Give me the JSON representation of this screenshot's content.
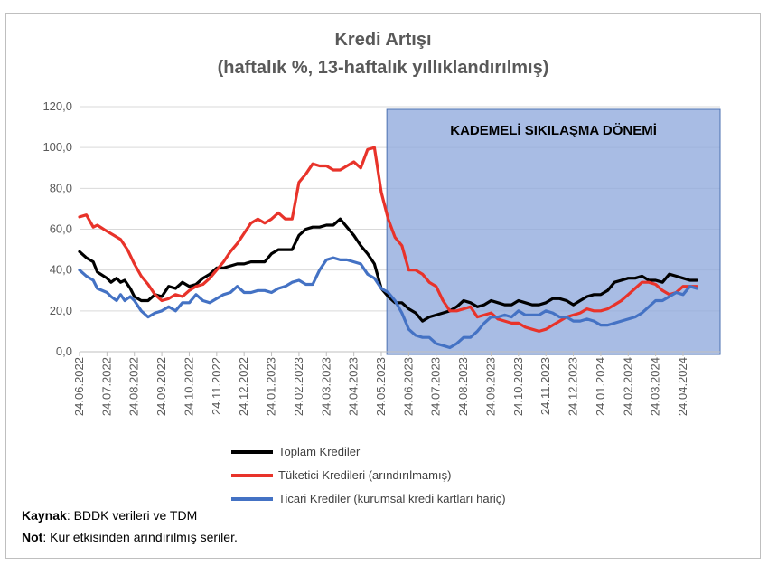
{
  "chart_data": {
    "type": "line",
    "title": "Kredi Artışı",
    "subtitle": "(haftalık %, 13-haftalık yıllıklandırılmış)",
    "ylim": [
      0,
      120
    ],
    "yticks": [
      "0,0",
      "20,0",
      "40,0",
      "60,0",
      "80,0",
      "100,0",
      "120,0"
    ],
    "ytick_values": [
      0,
      20,
      40,
      60,
      80,
      100,
      120
    ],
    "grid": true,
    "legend_position": "bottom",
    "x_dates": [
      "24.06.2022",
      "24.07.2022",
      "24.08.2022",
      "24.09.2022",
      "24.10.2022",
      "24.11.2022",
      "24.12.2022",
      "24.01.2023",
      "24.02.2023",
      "24.03.2023",
      "24.04.2023",
      "24.05.2023",
      "24.06.2023",
      "24.07.2023",
      "24.08.2023",
      "24.09.2023",
      "24.10.2023",
      "24.11.2023",
      "24.12.2023",
      "24.01.2024",
      "24.02.2024",
      "24.03.2024",
      "24.04.2024"
    ],
    "shaded_region": {
      "label": "KADEMELİ SIKILAŞMA DÖNEMİ",
      "x_start_month": 11.4,
      "x_end_month": 23.6,
      "color": "#8FA9DC"
    },
    "series": [
      {
        "name": "Toplam Krediler",
        "color": "#000000",
        "points": [
          [
            0,
            49
          ],
          [
            0.5,
            46
          ],
          [
            1,
            44
          ],
          [
            1.3,
            39
          ],
          [
            2,
            36
          ],
          [
            2.3,
            34
          ],
          [
            2.7,
            36
          ],
          [
            3,
            34
          ],
          [
            3.3,
            35
          ],
          [
            3.7,
            31
          ],
          [
            4,
            27
          ],
          [
            4.5,
            25
          ],
          [
            5,
            25
          ],
          [
            5.5,
            28
          ],
          [
            6,
            27
          ],
          [
            6.5,
            32
          ],
          [
            7,
            31
          ],
          [
            7.5,
            34
          ],
          [
            8,
            32
          ],
          [
            8.5,
            33
          ],
          [
            9,
            36
          ],
          [
            9.5,
            38
          ],
          [
            10,
            41
          ],
          [
            10.5,
            41
          ],
          [
            11,
            42
          ],
          [
            11.5,
            43
          ],
          [
            12,
            43
          ],
          [
            12.5,
            44
          ],
          [
            13,
            44
          ],
          [
            13.5,
            44
          ],
          [
            14,
            48
          ],
          [
            14.5,
            50
          ],
          [
            15,
            50
          ],
          [
            15.5,
            50
          ],
          [
            16,
            57
          ],
          [
            16.5,
            60
          ],
          [
            17,
            61
          ],
          [
            17.5,
            61
          ],
          [
            18,
            62
          ],
          [
            18.5,
            62
          ],
          [
            19,
            65
          ],
          [
            19.5,
            61
          ],
          [
            20,
            57
          ],
          [
            20.5,
            52
          ],
          [
            21,
            48
          ],
          [
            21.5,
            43
          ],
          [
            22,
            31
          ],
          [
            22.5,
            27
          ],
          [
            23,
            24
          ],
          [
            23.5,
            24
          ],
          [
            24,
            21
          ],
          [
            24.5,
            19
          ],
          [
            25,
            15
          ],
          [
            25.5,
            17
          ],
          [
            26,
            18
          ],
          [
            26.5,
            19
          ],
          [
            27,
            20
          ],
          [
            27.5,
            22
          ],
          [
            28,
            25
          ],
          [
            28.5,
            24
          ],
          [
            29,
            22
          ],
          [
            29.5,
            23
          ],
          [
            30,
            25
          ],
          [
            30.5,
            24
          ],
          [
            31,
            23
          ],
          [
            31.5,
            23
          ],
          [
            32,
            25
          ],
          [
            32.5,
            24
          ],
          [
            33,
            23
          ],
          [
            33.5,
            23
          ],
          [
            34,
            24
          ],
          [
            34.5,
            26
          ],
          [
            35,
            26
          ],
          [
            35.5,
            25
          ],
          [
            36,
            23
          ],
          [
            36.5,
            25
          ],
          [
            37,
            27
          ],
          [
            37.5,
            28
          ],
          [
            38,
            28
          ],
          [
            38.5,
            30
          ],
          [
            39,
            34
          ],
          [
            39.5,
            35
          ],
          [
            40,
            36
          ],
          [
            40.5,
            36
          ],
          [
            41,
            37
          ],
          [
            41.5,
            35
          ],
          [
            42,
            35
          ],
          [
            42.5,
            34
          ],
          [
            43,
            38
          ],
          [
            43.5,
            37
          ],
          [
            44,
            36
          ],
          [
            44.5,
            35
          ],
          [
            45,
            35
          ]
        ]
      },
      {
        "name": "Tüketici Kredileri (arındırılmamış)",
        "color": "#E8332A",
        "points": [
          [
            0,
            66
          ],
          [
            0.5,
            67
          ],
          [
            1,
            61
          ],
          [
            1.3,
            62
          ],
          [
            2,
            59
          ],
          [
            2.5,
            57
          ],
          [
            3,
            55
          ],
          [
            3.5,
            50
          ],
          [
            4,
            43
          ],
          [
            4.5,
            37
          ],
          [
            5,
            33
          ],
          [
            5.5,
            28
          ],
          [
            6,
            25
          ],
          [
            6.5,
            26
          ],
          [
            7,
            28
          ],
          [
            7.5,
            27
          ],
          [
            8,
            30
          ],
          [
            8.5,
            32
          ],
          [
            9,
            33
          ],
          [
            9.5,
            36
          ],
          [
            10,
            40
          ],
          [
            10.5,
            44
          ],
          [
            11,
            49
          ],
          [
            11.5,
            53
          ],
          [
            12,
            58
          ],
          [
            12.5,
            63
          ],
          [
            13,
            65
          ],
          [
            13.5,
            63
          ],
          [
            14,
            65
          ],
          [
            14.5,
            68
          ],
          [
            15,
            65
          ],
          [
            15.5,
            65
          ],
          [
            16,
            83
          ],
          [
            16.5,
            87
          ],
          [
            17,
            92
          ],
          [
            17.5,
            91
          ],
          [
            18,
            91
          ],
          [
            18.5,
            89
          ],
          [
            19,
            89
          ],
          [
            19.5,
            91
          ],
          [
            20,
            93
          ],
          [
            20.5,
            90
          ],
          [
            21,
            99
          ],
          [
            21.5,
            100
          ],
          [
            22,
            78
          ],
          [
            22.5,
            65
          ],
          [
            23,
            56
          ],
          [
            23.5,
            52
          ],
          [
            24,
            40
          ],
          [
            24.5,
            40
          ],
          [
            25,
            38
          ],
          [
            25.5,
            34
          ],
          [
            26,
            32
          ],
          [
            26.5,
            25
          ],
          [
            27,
            20
          ],
          [
            27.5,
            20
          ],
          [
            28,
            21
          ],
          [
            28.5,
            22
          ],
          [
            29,
            17
          ],
          [
            29.5,
            18
          ],
          [
            30,
            19
          ],
          [
            30.5,
            16
          ],
          [
            31,
            15
          ],
          [
            31.5,
            14
          ],
          [
            32,
            14
          ],
          [
            32.5,
            12
          ],
          [
            33,
            11
          ],
          [
            33.5,
            10
          ],
          [
            34,
            11
          ],
          [
            34.5,
            13
          ],
          [
            35,
            15
          ],
          [
            35.5,
            17
          ],
          [
            36,
            18
          ],
          [
            36.5,
            19
          ],
          [
            37,
            21
          ],
          [
            37.5,
            20
          ],
          [
            38,
            20
          ],
          [
            38.5,
            21
          ],
          [
            39,
            23
          ],
          [
            39.5,
            25
          ],
          [
            40,
            28
          ],
          [
            40.5,
            31
          ],
          [
            41,
            34
          ],
          [
            41.5,
            34
          ],
          [
            42,
            33
          ],
          [
            42.5,
            30
          ],
          [
            43,
            28
          ],
          [
            43.5,
            29
          ],
          [
            44,
            32
          ],
          [
            44.5,
            32
          ],
          [
            45,
            32
          ]
        ]
      },
      {
        "name": "Ticari Krediler (kurumsal kredi kartları hariç)",
        "color": "#4472C4",
        "points": [
          [
            0,
            40
          ],
          [
            0.5,
            37
          ],
          [
            1,
            35
          ],
          [
            1.3,
            31
          ],
          [
            2,
            29
          ],
          [
            2.3,
            27
          ],
          [
            2.7,
            25
          ],
          [
            3,
            28
          ],
          [
            3.3,
            25
          ],
          [
            3.7,
            27
          ],
          [
            4,
            25
          ],
          [
            4.5,
            20
          ],
          [
            5,
            17
          ],
          [
            5.5,
            19
          ],
          [
            6,
            20
          ],
          [
            6.5,
            22
          ],
          [
            7,
            20
          ],
          [
            7.5,
            24
          ],
          [
            8,
            24
          ],
          [
            8.5,
            28
          ],
          [
            9,
            25
          ],
          [
            9.5,
            24
          ],
          [
            10,
            26
          ],
          [
            10.5,
            28
          ],
          [
            11,
            29
          ],
          [
            11.5,
            32
          ],
          [
            12,
            29
          ],
          [
            12.5,
            29
          ],
          [
            13,
            30
          ],
          [
            13.5,
            30
          ],
          [
            14,
            29
          ],
          [
            14.5,
            31
          ],
          [
            15,
            32
          ],
          [
            15.5,
            34
          ],
          [
            16,
            35
          ],
          [
            16.5,
            33
          ],
          [
            17,
            33
          ],
          [
            17.5,
            40
          ],
          [
            18,
            45
          ],
          [
            18.5,
            46
          ],
          [
            19,
            45
          ],
          [
            19.5,
            45
          ],
          [
            20,
            44
          ],
          [
            20.5,
            43
          ],
          [
            21,
            38
          ],
          [
            21.5,
            36
          ],
          [
            22,
            31
          ],
          [
            22.5,
            29
          ],
          [
            23,
            25
          ],
          [
            23.5,
            19
          ],
          [
            24,
            11
          ],
          [
            24.5,
            8
          ],
          [
            25,
            7
          ],
          [
            25.5,
            7
          ],
          [
            26,
            4
          ],
          [
            26.5,
            3
          ],
          [
            27,
            2
          ],
          [
            27.5,
            4
          ],
          [
            28,
            7
          ],
          [
            28.5,
            7
          ],
          [
            29,
            10
          ],
          [
            29.5,
            14
          ],
          [
            30,
            17
          ],
          [
            30.5,
            17
          ],
          [
            31,
            18
          ],
          [
            31.5,
            17
          ],
          [
            32,
            20
          ],
          [
            32.5,
            18
          ],
          [
            33,
            18
          ],
          [
            33.5,
            18
          ],
          [
            34,
            20
          ],
          [
            34.5,
            19
          ],
          [
            35,
            17
          ],
          [
            35.5,
            17
          ],
          [
            36,
            15
          ],
          [
            36.5,
            15
          ],
          [
            37,
            16
          ],
          [
            37.5,
            15
          ],
          [
            38,
            13
          ],
          [
            38.5,
            13
          ],
          [
            39,
            14
          ],
          [
            39.5,
            15
          ],
          [
            40,
            16
          ],
          [
            40.5,
            17
          ],
          [
            41,
            19
          ],
          [
            41.5,
            22
          ],
          [
            42,
            25
          ],
          [
            42.5,
            25
          ],
          [
            43,
            27
          ],
          [
            43.5,
            29
          ],
          [
            44,
            28
          ],
          [
            44.5,
            32
          ],
          [
            45,
            31
          ]
        ]
      }
    ]
  },
  "footer": {
    "source_label": "Kaynak",
    "source_text": ": BDDK verileri ve TDM",
    "note_label": "Not",
    "note_text": ": Kur etkisinden arındırılmış seriler."
  }
}
